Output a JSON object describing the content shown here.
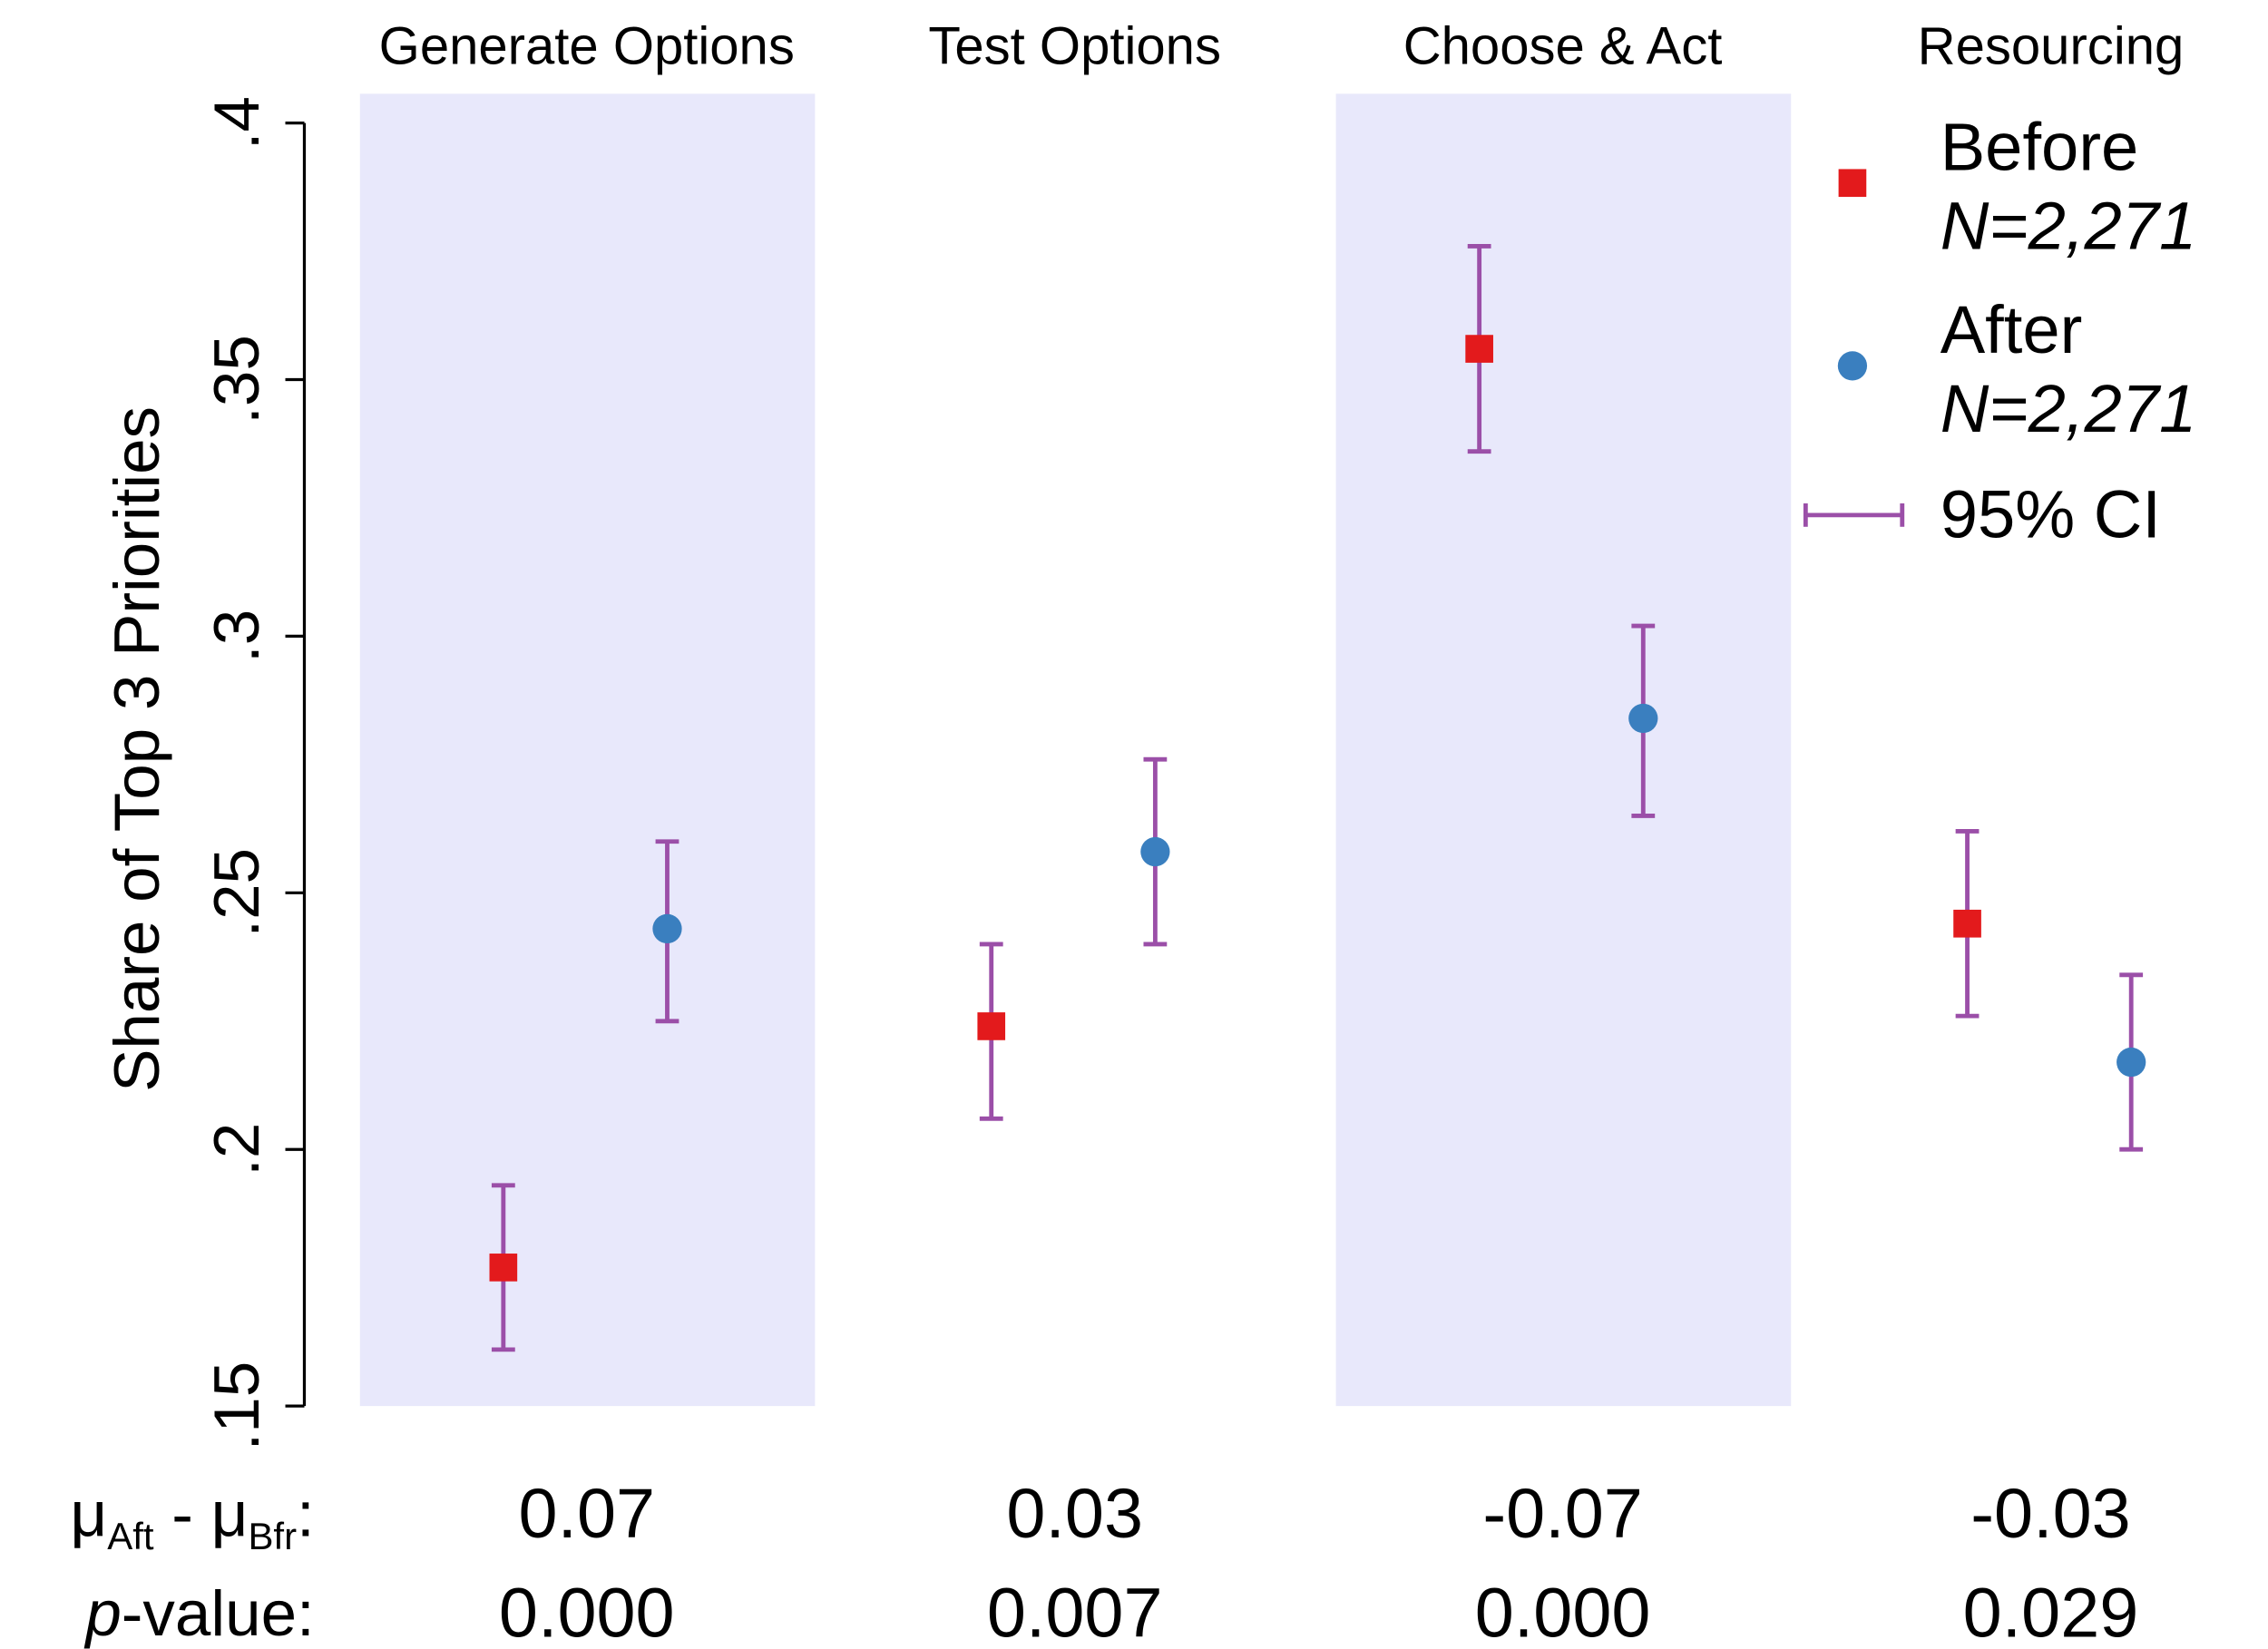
{
  "chart_data": {
    "type": "scatter",
    "y_label": "Share of Top 3 Priorities",
    "categories": [
      "Generate Options",
      "Test Options",
      "Choose & Act",
      "Resourcing"
    ],
    "shaded": [
      true,
      false,
      true,
      false
    ],
    "shade_color": "#e8e8fb",
    "ylim": [
      0.15,
      0.4
    ],
    "yticks": [
      {
        "value": 0.15,
        "label": ".15"
      },
      {
        "value": 0.2,
        "label": ".2"
      },
      {
        "value": 0.25,
        "label": ".25"
      },
      {
        "value": 0.3,
        "label": ".3"
      },
      {
        "value": 0.35,
        "label": ".35"
      },
      {
        "value": 0.4,
        "label": ".4"
      }
    ],
    "ci_color": "#9b4fa8",
    "ci_label": "95% CI",
    "series": [
      {
        "name": "Before",
        "sample": "N=2,271",
        "marker": "square",
        "color": "#e31a1c",
        "values": [
          0.177,
          0.224,
          0.356,
          0.244
        ],
        "ci_low": [
          0.161,
          0.206,
          0.336,
          0.226
        ],
        "ci_high": [
          0.193,
          0.24,
          0.376,
          0.262
        ]
      },
      {
        "name": "After",
        "sample": "N=2,271",
        "marker": "circle",
        "color": "#3a7fbf",
        "values": [
          0.243,
          0.258,
          0.284,
          0.217
        ],
        "ci_low": [
          0.225,
          0.24,
          0.265,
          0.2
        ],
        "ci_high": [
          0.26,
          0.276,
          0.302,
          0.234
        ]
      }
    ],
    "diff_row": {
      "label": {
        "mu1": "μ",
        "sub1": "Aft",
        "mid": " - μ",
        "sub2": "Bfr",
        "end": ":"
      },
      "values": [
        "0.07",
        "0.03",
        "-0.07",
        "-0.03"
      ]
    },
    "p_row": {
      "label": {
        "italic": "p",
        "rest": "-value:"
      },
      "values": [
        "0.000",
        "0.007",
        "0.000",
        "0.029"
      ]
    }
  }
}
